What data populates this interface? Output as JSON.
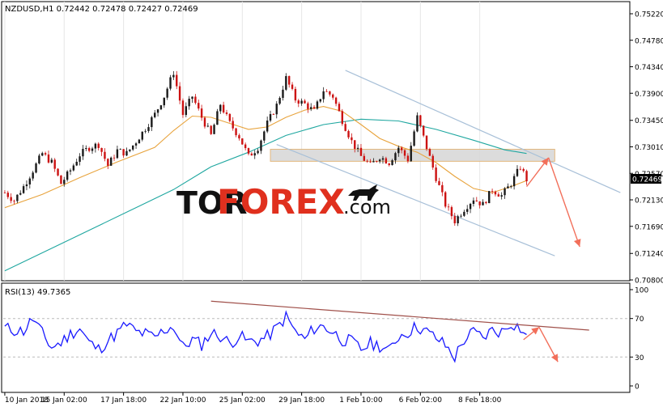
{
  "main_chart": {
    "header": "NZDUSD,H1  0.72442 0.72478 0.72427 0.72469",
    "current_price_label": "0.72469",
    "y_ticks": [
      "0.75220",
      "0.74780",
      "0.74340",
      "0.73900",
      "0.73450",
      "0.73010",
      "0.72570",
      "0.72130",
      "0.71690",
      "0.71240",
      "0.70800"
    ]
  },
  "rsi_panel": {
    "header": "RSI(13) 49.7365",
    "y_ticks": [
      "100",
      "70",
      "30",
      "0"
    ]
  },
  "x_ticks": [
    "10 Jan 2018",
    "15 Jan 02:00",
    "17 Jan 18:00",
    "22 Jan 10:00",
    "25 Jan 02:00",
    "29 Jan 18:00",
    "1 Feb 10:00",
    "6 Feb 02:00",
    "8 Feb 18:00"
  ],
  "watermark": {
    "brand_a": "TOR",
    "brand_b": "FOREX",
    "brand_c": ".com"
  },
  "colors": {
    "bull_candle": "#1a1a1a",
    "bear_candle": "#cc1111",
    "ma_fast": "#e8a33c",
    "ma_slow": "#1fa7a0",
    "channel": "#a8c0d8",
    "zone_fill": "#d9d9d9",
    "forecast_arrow": "#f26f5a",
    "rsi_line": "#1a1aff",
    "rsi_trend": "#a0504a",
    "watermark_red": "#e0301e"
  },
  "chart_data": [
    {
      "type": "candlestick",
      "title": "NZDUSD,H1",
      "ylim": [
        0.708,
        0.7535
      ],
      "last_ohlc": {
        "open": 0.72442,
        "high": 0.72478,
        "low": 0.72427,
        "close": 0.72469
      },
      "x_labels": [
        "10 Jan 2018",
        "15 Jan 02:00",
        "17 Jan 18:00",
        "22 Jan 10:00",
        "25 Jan 02:00",
        "29 Jan 18:00",
        "1 Feb 10:00",
        "6 Feb 02:00",
        "8 Feb 18:00"
      ],
      "close_path": [
        [
          0,
          0.7225
        ],
        [
          3,
          0.7212
        ],
        [
          6,
          0.7235
        ],
        [
          9,
          0.7262
        ],
        [
          12,
          0.729
        ],
        [
          15,
          0.7275
        ],
        [
          18,
          0.724
        ],
        [
          21,
          0.7262
        ],
        [
          24,
          0.7288
        ],
        [
          27,
          0.73
        ],
        [
          30,
          0.7305
        ],
        [
          33,
          0.727
        ],
        [
          36,
          0.7295
        ],
        [
          39,
          0.729
        ],
        [
          42,
          0.731
        ],
        [
          45,
          0.7332
        ],
        [
          48,
          0.7355
        ],
        [
          51,
          0.7385
        ],
        [
          54,
          0.7425
        ],
        [
          57,
          0.7355
        ],
        [
          60,
          0.7385
        ],
        [
          63,
          0.735
        ],
        [
          66,
          0.732
        ],
        [
          69,
          0.7372
        ],
        [
          72,
          0.734
        ],
        [
          75,
          0.7318
        ],
        [
          78,
          0.7285
        ],
        [
          81,
          0.73
        ],
        [
          84,
          0.734
        ],
        [
          87,
          0.737
        ],
        [
          90,
          0.7415
        ],
        [
          93,
          0.738
        ],
        [
          96,
          0.7372
        ],
        [
          99,
          0.736
        ],
        [
          102,
          0.7395
        ],
        [
          105,
          0.7385
        ],
        [
          108,
          0.7345
        ],
        [
          111,
          0.731
        ],
        [
          114,
          0.7285
        ],
        [
          117,
          0.727
        ],
        [
          120,
          0.7285
        ],
        [
          123,
          0.7275
        ],
        [
          126,
          0.73
        ],
        [
          129,
          0.728
        ],
        [
          132,
          0.735
        ],
        [
          135,
          0.73
        ],
        [
          138,
          0.725
        ],
        [
          141,
          0.7205
        ],
        [
          144,
          0.7178
        ],
        [
          147,
          0.7198
        ],
        [
          150,
          0.7215
        ],
        [
          153,
          0.7205
        ],
        [
          156,
          0.723
        ],
        [
          159,
          0.722
        ],
        [
          162,
          0.724
        ],
        [
          165,
          0.7268
        ],
        [
          167,
          0.72469
        ]
      ],
      "ma_fast": [
        [
          0,
          0.72
        ],
        [
          12,
          0.7222
        ],
        [
          24,
          0.725
        ],
        [
          36,
          0.7276
        ],
        [
          48,
          0.73
        ],
        [
          54,
          0.7328
        ],
        [
          60,
          0.7352
        ],
        [
          66,
          0.735
        ],
        [
          72,
          0.734
        ],
        [
          78,
          0.733
        ],
        [
          84,
          0.7334
        ],
        [
          90,
          0.735
        ],
        [
          96,
          0.7362
        ],
        [
          102,
          0.7368
        ],
        [
          108,
          0.736
        ],
        [
          114,
          0.7338
        ],
        [
          120,
          0.7315
        ],
        [
          126,
          0.7302
        ],
        [
          132,
          0.7292
        ],
        [
          138,
          0.7275
        ],
        [
          144,
          0.7252
        ],
        [
          150,
          0.7232
        ],
        [
          156,
          0.7225
        ],
        [
          162,
          0.7235
        ],
        [
          167,
          0.7245
        ]
      ],
      "ma_slow": [
        [
          0,
          0.7095
        ],
        [
          20,
          0.7145
        ],
        [
          40,
          0.7195
        ],
        [
          54,
          0.723
        ],
        [
          66,
          0.7268
        ],
        [
          78,
          0.7292
        ],
        [
          90,
          0.732
        ],
        [
          102,
          0.7338
        ],
        [
          114,
          0.7347
        ],
        [
          126,
          0.7344
        ],
        [
          138,
          0.733
        ],
        [
          150,
          0.7312
        ],
        [
          160,
          0.7296
        ],
        [
          167,
          0.729
        ]
      ],
      "channel_upper": [
        [
          109,
          0.7428
        ],
        [
          197,
          0.7225
        ]
      ],
      "channel_lower": [
        [
          87,
          0.7305
        ],
        [
          176,
          0.712
        ]
      ],
      "resistance_zone": [
        0.7277,
        0.7297
      ],
      "forecast": [
        [
          167,
          0.7235
        ],
        [
          174,
          0.7283
        ],
        [
          184,
          0.7135
        ]
      ]
    },
    {
      "type": "line",
      "title": "RSI(13) 49.7365",
      "ylim": [
        0,
        100
      ],
      "y_ticks": [
        0,
        30,
        70,
        100
      ],
      "current": 49.7365,
      "values": [
        [
          0,
          60
        ],
        [
          3,
          58
        ],
        [
          6,
          57
        ],
        [
          9,
          70
        ],
        [
          12,
          54
        ],
        [
          15,
          40
        ],
        [
          18,
          45
        ],
        [
          21,
          54
        ],
        [
          24,
          60
        ],
        [
          27,
          45
        ],
        [
          30,
          38
        ],
        [
          33,
          47
        ],
        [
          36,
          55
        ],
        [
          39,
          64
        ],
        [
          42,
          56
        ],
        [
          45,
          54
        ],
        [
          48,
          50
        ],
        [
          51,
          58
        ],
        [
          54,
          62
        ],
        [
          57,
          40
        ],
        [
          60,
          48
        ],
        [
          63,
          43
        ],
        [
          66,
          55
        ],
        [
          69,
          52
        ],
        [
          72,
          44
        ],
        [
          75,
          52
        ],
        [
          78,
          46
        ],
        [
          81,
          47
        ],
        [
          84,
          51
        ],
        [
          87,
          60
        ],
        [
          90,
          72
        ],
        [
          93,
          56
        ],
        [
          96,
          48
        ],
        [
          99,
          60
        ],
        [
          102,
          62
        ],
        [
          105,
          56
        ],
        [
          108,
          48
        ],
        [
          111,
          46
        ],
        [
          114,
          38
        ],
        [
          117,
          44
        ],
        [
          120,
          42
        ],
        [
          123,
          36
        ],
        [
          126,
          52
        ],
        [
          129,
          56
        ],
        [
          132,
          62
        ],
        [
          135,
          56
        ],
        [
          138,
          50
        ],
        [
          141,
          42
        ],
        [
          144,
          30
        ],
        [
          147,
          48
        ],
        [
          150,
          56
        ],
        [
          153,
          50
        ],
        [
          156,
          58
        ],
        [
          159,
          56
        ],
        [
          162,
          66
        ],
        [
          165,
          60
        ],
        [
          167,
          49.7
        ]
      ],
      "trendline": [
        [
          66,
          88
        ],
        [
          187,
          58
        ]
      ],
      "forecast": [
        [
          166,
          48
        ],
        [
          171,
          61
        ],
        [
          177,
          25
        ]
      ]
    }
  ]
}
